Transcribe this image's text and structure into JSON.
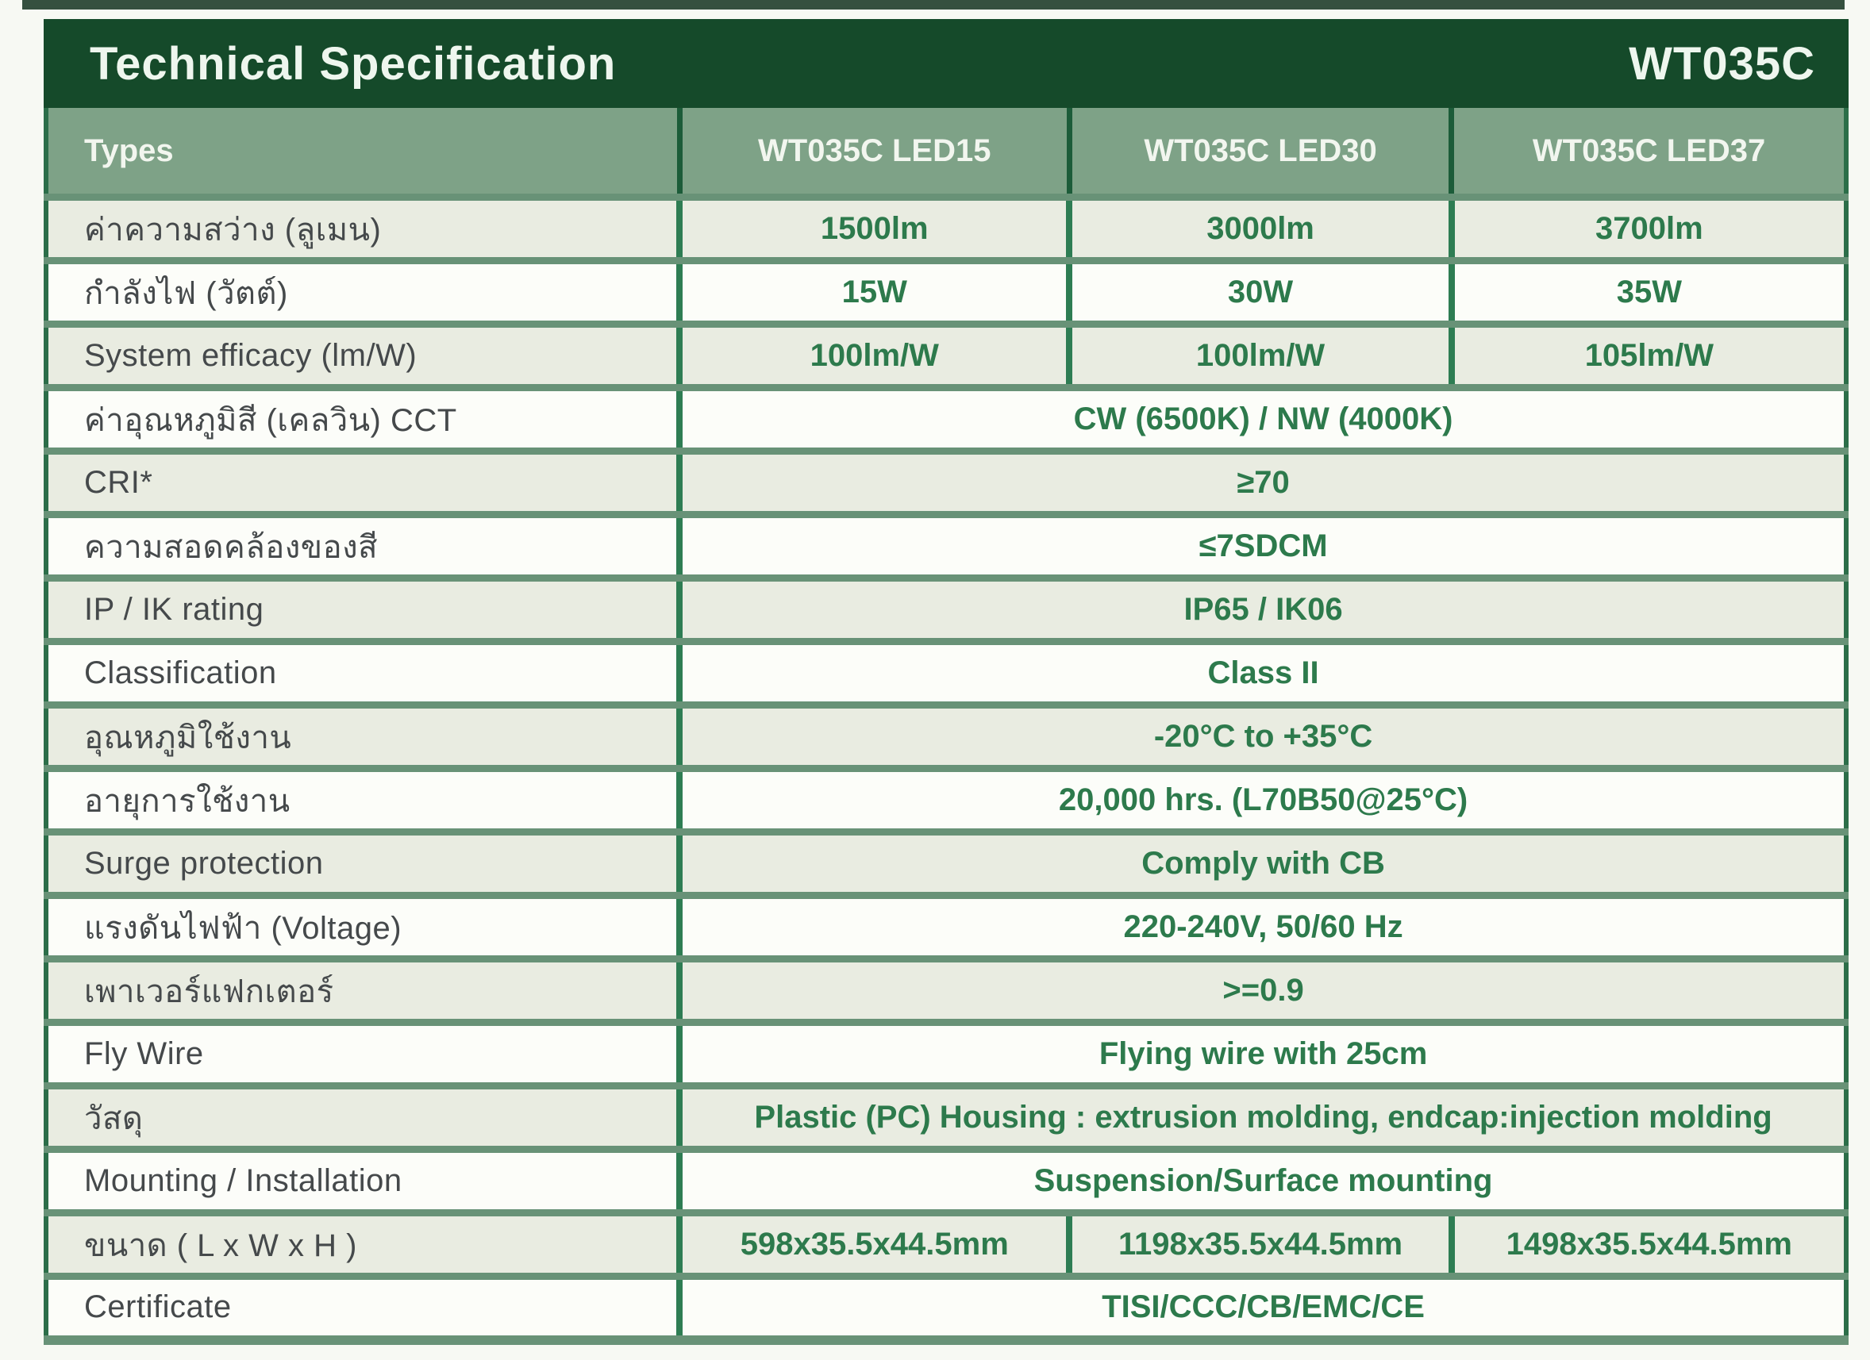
{
  "title_bar": {
    "title": "Technical Specification",
    "model": "WT035C"
  },
  "table": {
    "columns": [
      "Types",
      "WT035C LED15",
      "WT035C LED30",
      "WT035C LED37"
    ],
    "rows": [
      {
        "label": "ค่าความสว่าง (ลูเมน)",
        "span": false,
        "values": [
          "1500lm",
          "3000lm",
          "3700lm"
        ]
      },
      {
        "label": "กำลังไฟ (วัตต์)",
        "span": false,
        "values": [
          "15W",
          "30W",
          "35W"
        ]
      },
      {
        "label": "System efficacy (lm/W)",
        "span": false,
        "values": [
          "100lm/W",
          "100lm/W",
          "105lm/W"
        ]
      },
      {
        "label": "ค่าอุณหภูมิสี (เคลวิน) CCT",
        "span": true,
        "values": [
          "CW (6500K) / NW (4000K)"
        ]
      },
      {
        "label": "CRI*",
        "span": true,
        "values": [
          "≥70"
        ]
      },
      {
        "label": "ความสอดคล้องของสี",
        "span": true,
        "values": [
          "≤7SDCM"
        ]
      },
      {
        "label": "IP / IK rating",
        "span": true,
        "values": [
          "IP65 / IK06"
        ]
      },
      {
        "label": "Classification",
        "span": true,
        "values": [
          "Class II"
        ]
      },
      {
        "label": "อุณหภูมิใช้งาน",
        "span": true,
        "values": [
          "-20°C to +35°C"
        ]
      },
      {
        "label": "อายุการใช้งาน",
        "span": true,
        "values": [
          "20,000 hrs. (L70B50@25°C)"
        ]
      },
      {
        "label": "Surge protection",
        "span": true,
        "values": [
          "Comply with CB"
        ]
      },
      {
        "label": "แรงดันไฟฟ้า (Voltage)",
        "span": true,
        "values": [
          "220-240V, 50/60 Hz"
        ]
      },
      {
        "label": "เพาเวอร์แฟกเตอร์",
        "span": true,
        "values": [
          ">=0.9"
        ]
      },
      {
        "label": "Fly Wire",
        "span": true,
        "values": [
          "Flying wire with 25cm"
        ]
      },
      {
        "label": "วัสดุ",
        "span": true,
        "values": [
          "Plastic (PC) Housing : extrusion molding, endcap:injection molding"
        ]
      },
      {
        "label": "Mounting /  Installation",
        "span": true,
        "values": [
          "Suspension/Surface mounting"
        ]
      },
      {
        "label": "ขนาด ( L x W x H )",
        "span": false,
        "values": [
          "598x35.5x44.5mm",
          "1198x35.5x44.5mm",
          "1498x35.5x44.5mm"
        ]
      },
      {
        "label": "Certificate",
        "span": true,
        "values": [
          "TISI/CCC/CB/EMC/CE"
        ]
      }
    ]
  },
  "colors": {
    "title_bar_bg": "#154a2a",
    "header_row_bg": "#7ea287",
    "row_light_bg": "#e9ece1",
    "row_white_bg": "#fcfdf9",
    "divider_sage": "#689277",
    "divider_dark_green": "#1c5c39",
    "value_text_green": "#2d7a4c",
    "label_text": "#45494b"
  }
}
